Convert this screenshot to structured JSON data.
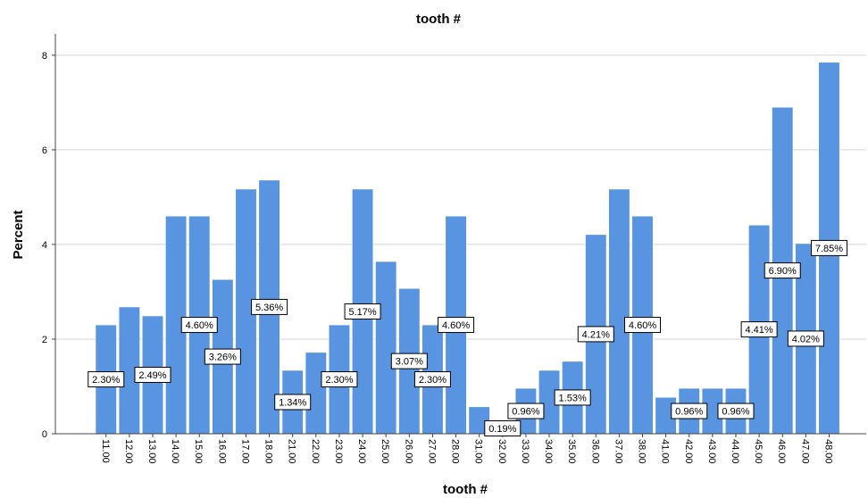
{
  "chart_data": {
    "type": "bar",
    "title": "tooth #",
    "xlabel": "tooth #",
    "ylabel": "Percent",
    "ylim": [
      0,
      8.45
    ],
    "yticks": [
      "0",
      "2",
      "4",
      "6",
      "8"
    ],
    "grid": true,
    "bar_color": "#5894e0",
    "categories": [
      "11.00",
      "12.00",
      "13.00",
      "14.00",
      "15.00",
      "16.00",
      "17.00",
      "18.00",
      "21.00",
      "22.00",
      "23.00",
      "24.00",
      "25.00",
      "26.00",
      "27.00",
      "28.00",
      "31.00",
      "32.00",
      "33.00",
      "34.00",
      "35.00",
      "36.00",
      "37.00",
      "38.00",
      "41.00",
      "42.00",
      "43.00",
      "44.00",
      "45.00",
      "46.00",
      "47.00",
      "48.00"
    ],
    "values": [
      2.3,
      2.68,
      2.49,
      4.6,
      4.6,
      3.26,
      5.17,
      5.36,
      1.34,
      1.72,
      2.3,
      5.17,
      3.64,
      3.07,
      2.3,
      4.6,
      0.57,
      0.19,
      0.96,
      1.34,
      1.53,
      4.21,
      5.17,
      4.6,
      0.77,
      0.96,
      0.96,
      0.96,
      4.41,
      6.9,
      4.02,
      7.85
    ],
    "data_labels": [
      "2.30%",
      null,
      "2.49%",
      null,
      "4.60%",
      "3.26%",
      null,
      "5.36%",
      "1.34%",
      null,
      "2.30%",
      "5.17%",
      null,
      "3.07%",
      "2.30%",
      "4.60%",
      null,
      "0.19%",
      "0.96%",
      null,
      "1.53%",
      "4.21%",
      null,
      "4.60%",
      null,
      "0.96%",
      null,
      "0.96%",
      "4.41%",
      "6.90%",
      "4.02%",
      "7.85%"
    ]
  }
}
